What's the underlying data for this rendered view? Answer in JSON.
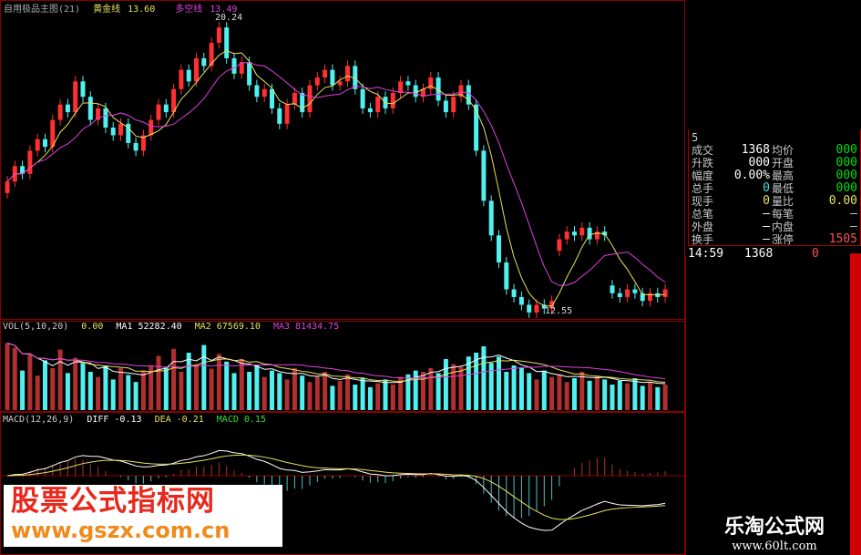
{
  "header": {
    "title": "自用极品主图(21)",
    "line1_label": "黄金线",
    "line1_value": "13.60",
    "line2_label": "多空线",
    "line2_value": "13.49"
  },
  "chart_data": {
    "type": "candlestick",
    "annotations": {
      "high": "20.24",
      "low": "12.55"
    },
    "open": [
      15.7,
      16.0,
      16.4,
      16.2,
      16.8,
      17.1,
      16.9,
      17.6,
      18.0,
      17.8,
      18.6,
      18.2,
      17.6,
      17.9,
      17.4,
      17.2,
      17.5,
      17.0,
      16.8,
      17.2,
      17.6,
      18.0,
      17.8,
      18.4,
      18.9,
      18.6,
      19.2,
      19.0,
      19.6,
      20.0,
      19.2,
      18.8,
      19.1,
      18.5,
      18.2,
      18.4,
      17.9,
      17.5,
      18.0,
      18.3,
      17.8,
      18.5,
      18.7,
      18.9,
      18.5,
      18.6,
      19.0,
      18.4,
      17.9,
      17.8,
      18.2,
      17.9,
      18.3,
      18.6,
      18.5,
      18.2,
      18.4,
      18.7,
      18.1,
      17.8,
      18.2,
      18.5,
      18.0,
      16.8,
      15.5,
      14.6,
      13.9,
      13.2,
      13.0,
      12.8,
      12.6,
      12.8,
      12.7,
      14.2,
      14.5,
      14.7,
      14.6,
      14.8,
      14.5,
      14.7,
      13.3,
      13.1,
      13.0,
      13.2,
      13.1,
      12.9,
      13.1,
      13.0
    ],
    "close": [
      16.0,
      16.4,
      16.2,
      16.8,
      17.1,
      16.9,
      17.6,
      18.0,
      17.8,
      18.6,
      18.2,
      17.6,
      17.9,
      17.4,
      17.2,
      17.5,
      17.0,
      16.8,
      17.2,
      17.6,
      18.0,
      17.8,
      18.4,
      18.9,
      18.6,
      19.2,
      19.0,
      19.6,
      20.0,
      19.2,
      18.8,
      19.1,
      18.5,
      18.2,
      18.4,
      17.9,
      17.5,
      18.0,
      18.3,
      17.8,
      18.5,
      18.7,
      18.9,
      18.5,
      18.6,
      19.0,
      18.4,
      17.9,
      17.8,
      18.2,
      17.9,
      18.3,
      18.6,
      18.5,
      18.2,
      18.4,
      18.7,
      18.1,
      17.8,
      18.2,
      18.5,
      18.0,
      16.8,
      15.5,
      14.6,
      13.9,
      13.2,
      13.0,
      12.8,
      12.6,
      12.8,
      12.7,
      12.9,
      14.5,
      14.7,
      14.6,
      14.8,
      14.5,
      14.7,
      14.6,
      13.1,
      13.0,
      13.2,
      13.1,
      12.9,
      13.1,
      13.0,
      13.2
    ],
    "volume": {
      "label": "VOL(5,10,20)",
      "value": "0.00",
      "ma1": "MA1 52282.40",
      "ma2": "MA2 67569.10",
      "ma3": "MA3 81434.75",
      "values": [
        105000,
        98000,
        62000,
        88000,
        54000,
        78000,
        66000,
        95000,
        58000,
        82000,
        74000,
        60000,
        52000,
        70000,
        48000,
        66000,
        55000,
        44000,
        62000,
        70000,
        85000,
        68000,
        96000,
        60000,
        90000,
        72000,
        102000,
        65000,
        88000,
        76000,
        58000,
        80000,
        60000,
        70000,
        52000,
        62000,
        58000,
        48000,
        66000,
        54000,
        44000,
        52000,
        60000,
        38000,
        46000,
        56000,
        40000,
        50000,
        36000,
        42000,
        48000,
        40000,
        52000,
        56000,
        62000,
        60000,
        66000,
        58000,
        80000,
        72000,
        68000,
        84000,
        90000,
        100000,
        74000,
        84000,
        60000,
        70000,
        66000,
        58000,
        48000,
        62000,
        52000,
        56000,
        44000,
        50000,
        60000,
        46000,
        54000,
        48000,
        40000,
        46000,
        42000,
        50000,
        38000,
        44000,
        36000,
        40000
      ]
    },
    "macd": {
      "label": "MACD(12,26,9)",
      "diff": "DIFF -0.13",
      "dea": "DEA -0.21",
      "macd": "MACD 0.15"
    }
  },
  "info": {
    "tab": "5",
    "rows": [
      {
        "l1": "成交",
        "v1": "1368",
        "l2": "均价",
        "v2": "000",
        "c2": "#00e000"
      },
      {
        "l1": "升跌",
        "v1": "000",
        "l2": "开盘",
        "v2": "000",
        "c2": "#00e000"
      },
      {
        "l1": "幅度",
        "v1": "0.00%",
        "l2": "最高",
        "v2": "000",
        "c2": "#00e000"
      },
      {
        "l1": "总手",
        "v1": "0",
        "l2": "最低",
        "v2": "000",
        "c2": "#00e000",
        "c1": "#40e0e0"
      },
      {
        "l1": "现手",
        "v1": "0",
        "l2": "量比",
        "v2": "0.00",
        "c2": "#e8e060",
        "c1": "#e8e060"
      },
      {
        "l1": "总笔",
        "v1": "—",
        "l2": "每笔",
        "v2": "—",
        "c2": "#ccc"
      },
      {
        "l1": "外盘",
        "v1": "—",
        "l2": "内盘",
        "v2": "—",
        "c2": "#ccc"
      },
      {
        "l1": "换手",
        "v1": "—",
        "l2": "涨停",
        "v2": "1505",
        "c2": "#ff5050"
      }
    ],
    "tick": {
      "time": "14:59",
      "price": "1368",
      "vol": "0"
    }
  },
  "colors": {
    "up": "#ff3030",
    "down": "#50f0f0",
    "ma5": "#ffffff",
    "ma10": "#e8e060",
    "ma20": "#e040e0",
    "grid": "#8a0000"
  },
  "watermarks": {
    "left_title": "股票公式指标网",
    "left_url": "www.gszx.com.cn",
    "right_title": "乐淘公式网",
    "right_url": "www.60lt.com"
  }
}
